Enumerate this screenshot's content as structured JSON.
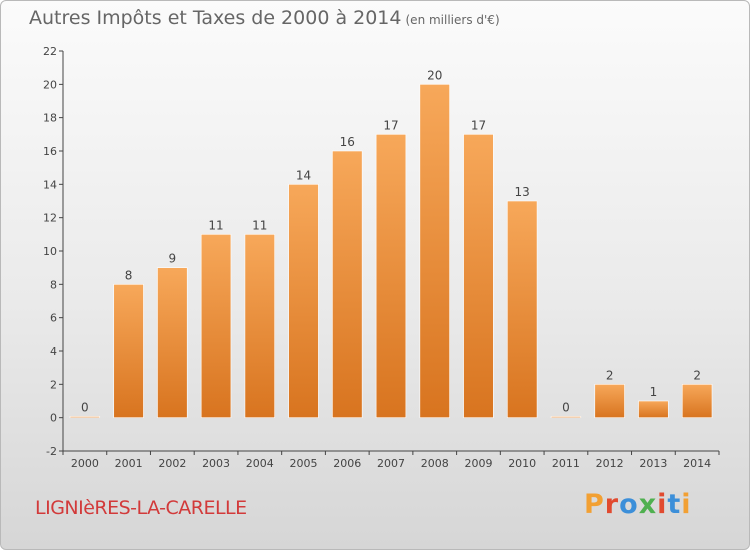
{
  "header": {
    "title": "Autres Impôts et Taxes de 2000 à 2014",
    "unit": "(en milliers d'€)"
  },
  "footer": {
    "commune": "LIGNIèRES-LA-CARELLE",
    "brand": "Proxiti",
    "brand_colors": [
      "#f2a033",
      "#e14a2f",
      "#3c8fd9",
      "#4fb04f",
      "#e14a2f",
      "#3c8fd9",
      "#f2a033"
    ]
  },
  "chart_data": {
    "type": "bar",
    "title": "Autres Impôts et Taxes de 2000 à 2014",
    "subtitle": "(en milliers d'€)",
    "xlabel": "",
    "ylabel": "",
    "categories": [
      "2000",
      "2001",
      "2002",
      "2003",
      "2004",
      "2005",
      "2006",
      "2007",
      "2008",
      "2009",
      "2010",
      "2011",
      "2012",
      "2013",
      "2014"
    ],
    "values": [
      0,
      8,
      9,
      11,
      11,
      14,
      16,
      17,
      20,
      17,
      13,
      0,
      2,
      1,
      2
    ],
    "ylim": [
      -2,
      22
    ],
    "yticks": [
      -2,
      0,
      2,
      4,
      6,
      8,
      10,
      12,
      14,
      16,
      18,
      20,
      22
    ],
    "grid": false,
    "bar_color_top": "#f7a85a",
    "bar_color_bottom": "#d8741f"
  }
}
